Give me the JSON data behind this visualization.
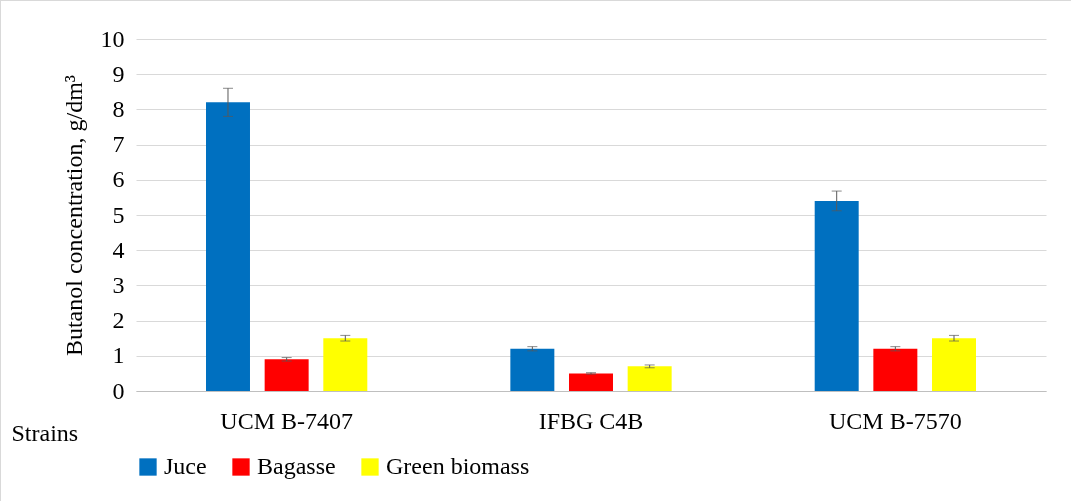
{
  "chart_data": {
    "type": "bar",
    "ylabel": "Butanol concentration, g/dm³",
    "xlabel": "Strains",
    "categories": [
      "UCM B-7407",
      "IFBG C4B",
      "UCM B-7570"
    ],
    "series": [
      {
        "name": "Juce",
        "color": "#0070c0",
        "values": [
          8.2,
          1.2,
          5.4
        ],
        "errors": [
          0.4,
          0.06,
          0.28
        ]
      },
      {
        "name": "Bagasse",
        "color": "#ff0000",
        "values": [
          0.9,
          0.5,
          1.2
        ],
        "errors": [
          0.05,
          0.02,
          0.06
        ]
      },
      {
        "name": "Green biomass",
        "color": "#ffff00",
        "values": [
          1.5,
          0.7,
          1.5
        ],
        "errors": [
          0.08,
          0.04,
          0.08
        ]
      }
    ],
    "ylim": [
      0,
      10
    ],
    "yticks": [
      0,
      1,
      2,
      3,
      4,
      5,
      6,
      7,
      8,
      9,
      10
    ],
    "grid": "y",
    "legend": "bottom"
  }
}
